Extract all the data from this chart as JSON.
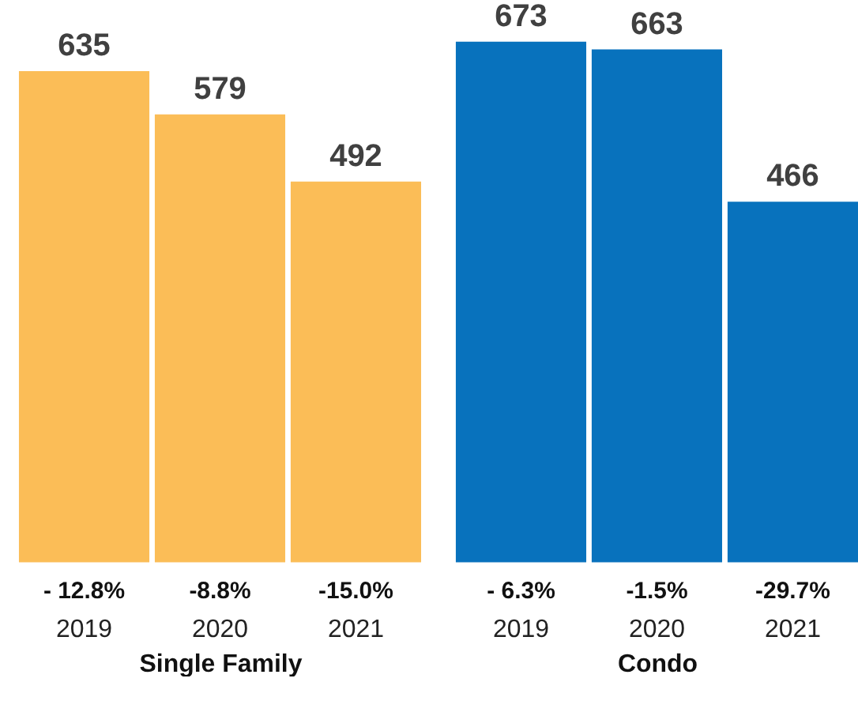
{
  "chart_data": [
    {
      "type": "bar",
      "categories": [
        "2019",
        "2020",
        "2021"
      ],
      "values": [
        635,
        579,
        492
      ],
      "color": "#fbbd57",
      "xlabel": "Single Family",
      "data_labels": true,
      "annotations": [
        "- 12.8%",
        "-8.8%",
        "-15.0%"
      ]
    },
    {
      "type": "bar",
      "categories": [
        "2019",
        "2020",
        "2021"
      ],
      "values": [
        673,
        663,
        466
      ],
      "color": "#0872bd",
      "xlabel": "Condo",
      "data_labels": true,
      "annotations": [
        "- 6.3%",
        "-1.5%",
        "-29.7%"
      ]
    }
  ]
}
